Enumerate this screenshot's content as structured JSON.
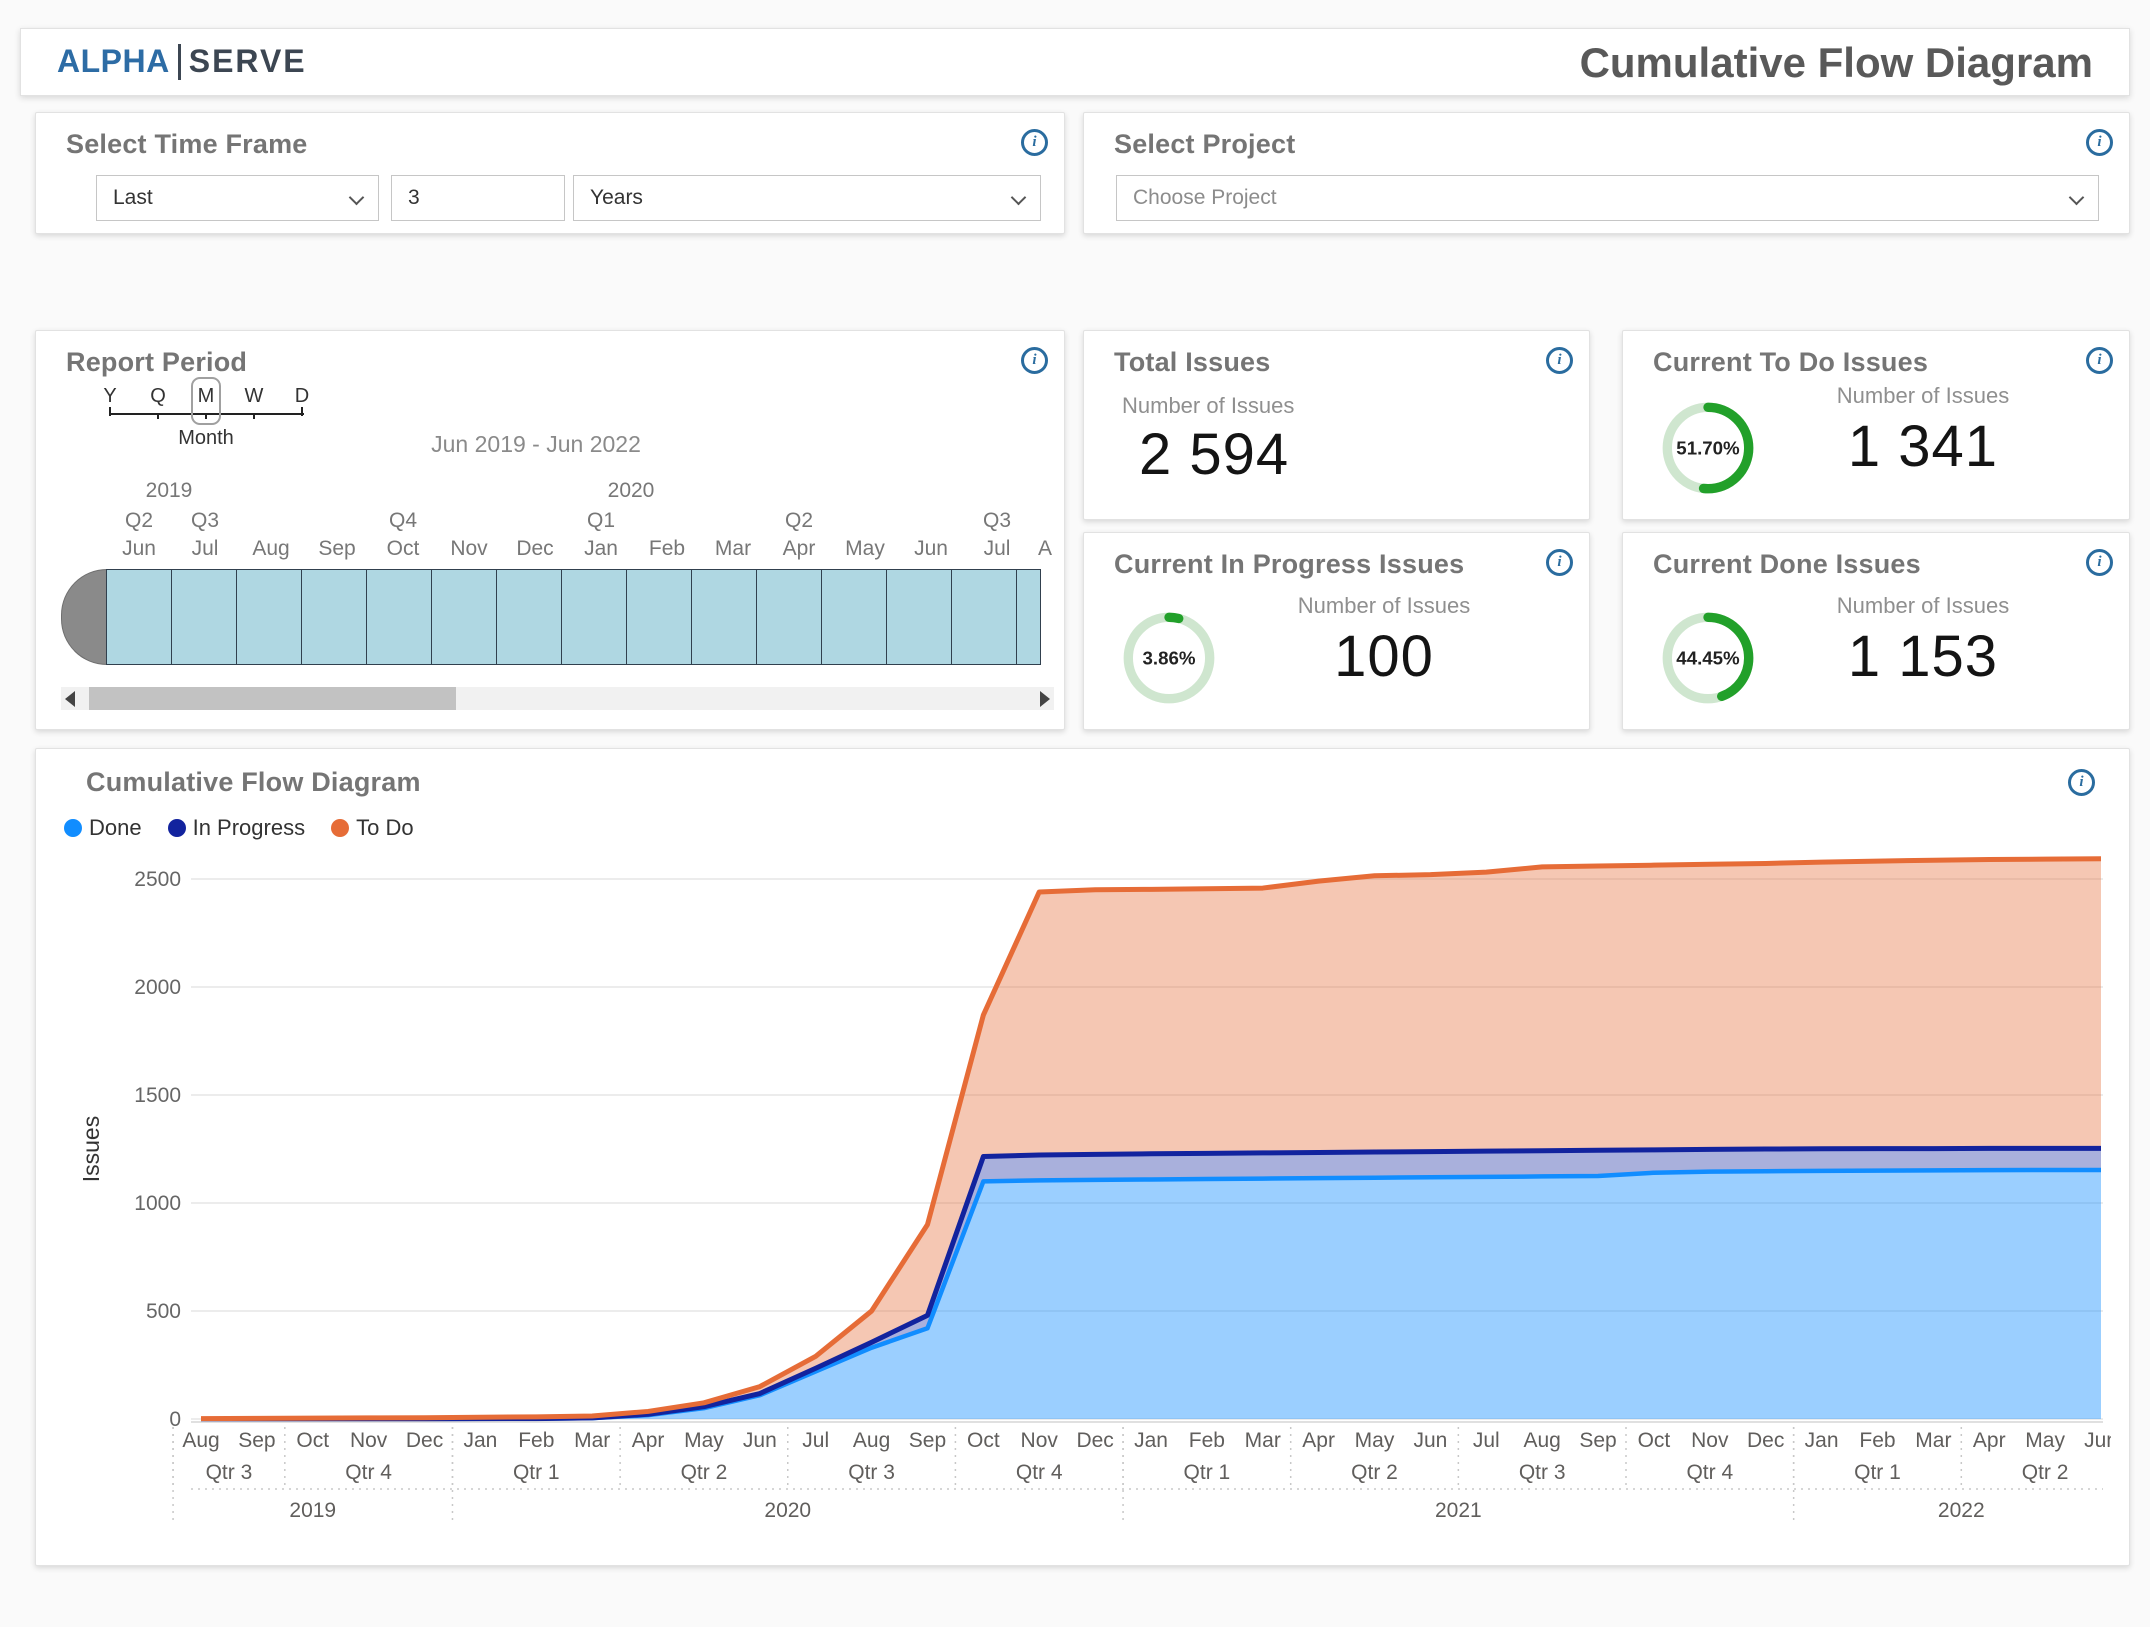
{
  "icons": {
    "info": "i"
  },
  "header": {
    "logo_primary": "ALPHA",
    "logo_secondary": "SERVE",
    "title": "Cumulative Flow Diagram"
  },
  "time_frame": {
    "title": "Select Time Frame",
    "last_value": "Last",
    "number_value": "3",
    "unit_value": "Years"
  },
  "project": {
    "title": "Select Project",
    "placeholder": "Choose Project"
  },
  "report_period": {
    "title": "Report Period",
    "granularity": {
      "options": [
        "Y",
        "Q",
        "M",
        "W",
        "D"
      ],
      "selected": "M",
      "selected_label": "Month"
    },
    "range_label": "Jun 2019 - Jun 2022",
    "timeline": {
      "years": [
        {
          "label": "2019",
          "month_index": 0
        },
        {
          "label": "2020",
          "month_index": 7
        }
      ],
      "quarters": [
        {
          "label": "Q2",
          "month_index": 0
        },
        {
          "label": "Q3",
          "month_index": 1
        },
        {
          "label": "Q4",
          "month_index": 4
        },
        {
          "label": "Q1",
          "month_index": 7
        },
        {
          "label": "Q2",
          "month_index": 10
        },
        {
          "label": "Q3",
          "month_index": 13
        }
      ],
      "months": [
        "Jun",
        "Jul",
        "Aug",
        "Sep",
        "Oct",
        "Nov",
        "Dec",
        "Jan",
        "Feb",
        "Mar",
        "Apr",
        "May",
        "Jun",
        "Jul",
        "A"
      ]
    }
  },
  "kpis": {
    "total": {
      "title": "Total Issues",
      "subtitle": "Number of Issues",
      "value": "2 594"
    },
    "todo": {
      "title": "Current To Do Issues",
      "subtitle": "Number of Issues",
      "value": "1 341",
      "percent": 51.7,
      "percent_label": "51.70%"
    },
    "in_progress": {
      "title": "Current In Progress Issues",
      "subtitle": "Number of Issues",
      "value": "100",
      "percent": 3.86,
      "percent_label": "3.86%"
    },
    "done": {
      "title": "Current Done Issues",
      "subtitle": "Number of Issues",
      "value": "1 153",
      "percent": 44.45,
      "percent_label": "44.45%"
    }
  },
  "chart": {
    "title": "Cumulative Flow Diagram",
    "legend": [
      {
        "label": "Done",
        "color": "#118DFF"
      },
      {
        "label": "In Progress",
        "color": "#12239E"
      },
      {
        "label": "To Do",
        "color": "#E66C37"
      }
    ]
  },
  "chart_data": {
    "type": "area",
    "title": "Cumulative Flow Diagram",
    "ylabel": "Issues",
    "ylim": [
      0,
      2500
    ],
    "yticks": [
      0,
      500,
      1000,
      1500,
      2000,
      2500
    ],
    "x": [
      "Aug",
      "Sep",
      "Oct",
      "Nov",
      "Dec",
      "Jan",
      "Feb",
      "Mar",
      "Apr",
      "May",
      "Jun",
      "Jul",
      "Aug",
      "Sep",
      "Oct",
      "Nov",
      "Dec",
      "Jan",
      "Feb",
      "Mar",
      "Apr",
      "May",
      "Jun",
      "Jul",
      "Aug",
      "Sep",
      "Oct",
      "Nov",
      "Dec",
      "Jan",
      "Feb",
      "Mar",
      "Apr",
      "May",
      "Jun"
    ],
    "quarters": [
      {
        "label": "Qtr 3",
        "start": 0,
        "end": 1
      },
      {
        "label": "Qtr 4",
        "start": 2,
        "end": 4
      },
      {
        "label": "Qtr 1",
        "start": 5,
        "end": 7
      },
      {
        "label": "Qtr 2",
        "start": 8,
        "end": 10
      },
      {
        "label": "Qtr 3",
        "start": 11,
        "end": 13
      },
      {
        "label": "Qtr 4",
        "start": 14,
        "end": 16
      },
      {
        "label": "Qtr 1",
        "start": 17,
        "end": 19
      },
      {
        "label": "Qtr 2",
        "start": 20,
        "end": 22
      },
      {
        "label": "Qtr 3",
        "start": 23,
        "end": 25
      },
      {
        "label": "Qtr 4",
        "start": 26,
        "end": 28
      },
      {
        "label": "Qtr 1",
        "start": 29,
        "end": 31
      },
      {
        "label": "Qtr 2",
        "start": 32,
        "end": 34
      }
    ],
    "years": [
      {
        "label": "2019",
        "start": 0,
        "end": 4
      },
      {
        "label": "2020",
        "start": 5,
        "end": 16
      },
      {
        "label": "2021",
        "start": 17,
        "end": 28
      },
      {
        "label": "2022",
        "start": 29,
        "end": 34
      }
    ],
    "series": [
      {
        "name": "Done",
        "color": "#118DFF",
        "fill_opacity": 0.42,
        "values": [
          0,
          0,
          0,
          0,
          0,
          1,
          2,
          4,
          18,
          50,
          110,
          220,
          330,
          420,
          1100,
          1105,
          1107,
          1109,
          1111,
          1113,
          1115,
          1117,
          1119,
          1121,
          1123,
          1125,
          1140,
          1145,
          1147,
          1149,
          1150,
          1151,
          1152,
          1153,
          1153
        ]
      },
      {
        "name": "In Progress",
        "color": "#12239E",
        "fill_opacity": 0.36,
        "values": [
          0,
          0,
          0,
          0,
          0,
          1,
          2,
          5,
          22,
          57,
          118,
          235,
          355,
          480,
          1215,
          1222,
          1225,
          1228,
          1230,
          1232,
          1234,
          1236,
          1238,
          1240,
          1242,
          1244,
          1246,
          1248,
          1250,
          1251,
          1252,
          1252,
          1253,
          1253,
          1253
        ]
      },
      {
        "name": "To Do",
        "color": "#E66C37",
        "fill_opacity": 0.38,
        "values": [
          2,
          3,
          4,
          5,
          6,
          8,
          10,
          14,
          35,
          75,
          150,
          290,
          500,
          900,
          1870,
          2440,
          2450,
          2452,
          2455,
          2458,
          2490,
          2515,
          2520,
          2532,
          2556,
          2560,
          2564,
          2568,
          2572,
          2578,
          2583,
          2587,
          2590,
          2592,
          2594
        ]
      }
    ]
  }
}
